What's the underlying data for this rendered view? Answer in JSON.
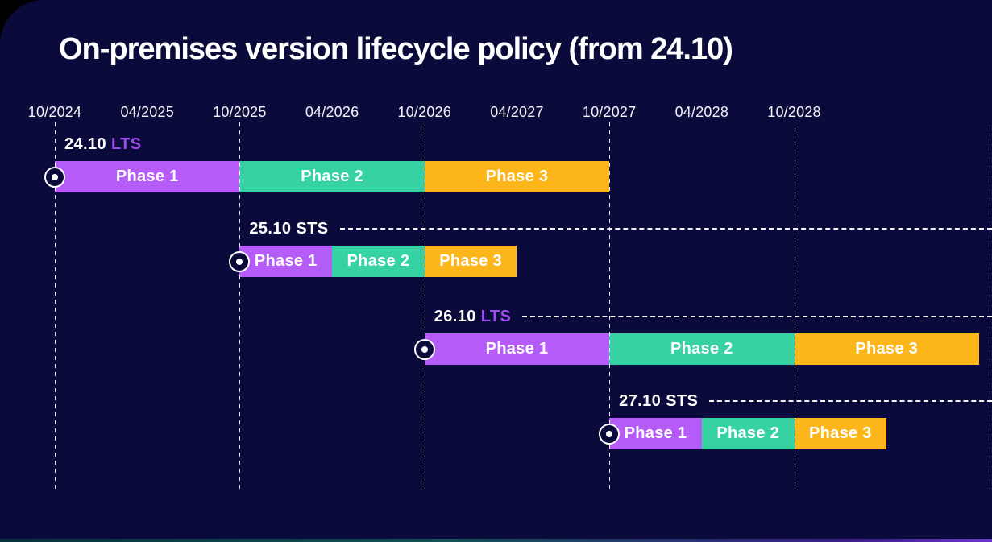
{
  "title": "On-premises version lifecycle policy (from 24.10)",
  "colors": {
    "background": "#0B0B3B",
    "phase1": "#B55BF7",
    "phase2": "#36D2A4",
    "phase3": "#FCB61A",
    "lts_text": "#9E4BF0",
    "sts_text": "#FFFFFF",
    "line": "#FFFFFF"
  },
  "chart_data": {
    "type": "bar",
    "subtype": "gantt-timeline",
    "title": "On-premises version lifecycle policy (from 24.10)",
    "x_ticks": [
      "10/2024",
      "04/2025",
      "10/2025",
      "04/2026",
      "10/2026",
      "04/2027",
      "10/2027",
      "04/2028",
      "10/2028"
    ],
    "gridlines_at": [
      "10/2024",
      "10/2025",
      "10/2026",
      "10/2027",
      "10/2028"
    ],
    "x_range": [
      "10/2024",
      "10/2029"
    ],
    "legend_position": "none",
    "rows": [
      {
        "version": "24.10",
        "channel": "LTS",
        "has_tail": false,
        "phases": [
          {
            "name": "Phase 1",
            "start": "10/2024",
            "end": "10/2025"
          },
          {
            "name": "Phase 2",
            "start": "10/2025",
            "end": "10/2026"
          },
          {
            "name": "Phase 3",
            "start": "10/2026",
            "end": "10/2027"
          }
        ]
      },
      {
        "version": "25.10",
        "channel": "STS",
        "has_tail": true,
        "phases": [
          {
            "name": "Phase 1",
            "start": "10/2025",
            "end": "04/2026"
          },
          {
            "name": "Phase 2",
            "start": "04/2026",
            "end": "10/2026"
          },
          {
            "name": "Phase 3",
            "start": "10/2026",
            "end": "04/2027"
          }
        ]
      },
      {
        "version": "26.10",
        "channel": "LTS",
        "has_tail": true,
        "phases": [
          {
            "name": "Phase 1",
            "start": "10/2026",
            "end": "10/2027"
          },
          {
            "name": "Phase 2",
            "start": "10/2027",
            "end": "10/2028"
          },
          {
            "name": "Phase 3",
            "start": "10/2028",
            "end": "10/2029"
          }
        ]
      },
      {
        "version": "27.10",
        "channel": "STS",
        "has_tail": true,
        "phases": [
          {
            "name": "Phase 1",
            "start": "10/2027",
            "end": "04/2028"
          },
          {
            "name": "Phase 2",
            "start": "04/2028",
            "end": "10/2028"
          },
          {
            "name": "Phase 3",
            "start": "10/2028",
            "end": "04/2029"
          }
        ]
      }
    ]
  }
}
